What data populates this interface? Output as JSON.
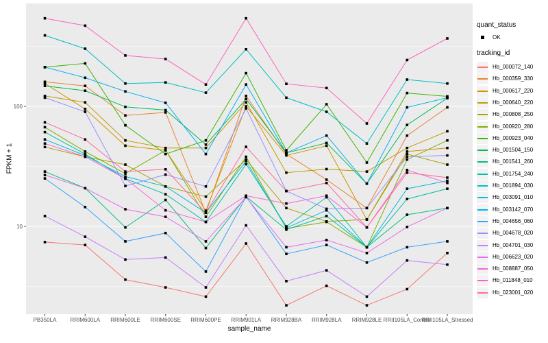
{
  "figure": {
    "y_axis_title": "FPKM + 1",
    "x_axis_title": "sample_name",
    "y_ticks": [
      {
        "label": "100",
        "value": 100
      },
      {
        "label": "10",
        "value": 10
      }
    ],
    "legend": {
      "quant_status_title": "quant_status",
      "quant_status_items": [
        {
          "label": "OK",
          "marker": "black-square"
        }
      ],
      "tracking_title": "tracking_id"
    },
    "colors": {
      "panel_background": "#EBEBEB",
      "grid": "#FFFFFF",
      "marker": "#000000",
      "tick_text": "#4D4D4D",
      "legend_key_background": "#F2F2F2"
    }
  },
  "chart_data": {
    "type": "line",
    "title": "",
    "xlabel": "sample_name",
    "ylabel": "FPKM + 1",
    "y_scale": "log10",
    "ylim": [
      2,
      720
    ],
    "grid": "on",
    "legend_position": "right",
    "major_gridlines": [
      10,
      100
    ],
    "minor_gridlines": [
      3.162,
      31.62,
      316.2
    ],
    "point_marker": "filled-black-square",
    "categories": [
      "PB350LA",
      "RRIM600LA",
      "RRIM600LE",
      "RRIM600SE",
      "RRIM600PE",
      "RRIM901LA",
      "RRIM928BA",
      "RRIM928LA",
      "RRIM928LE",
      "RRII105LA_Control",
      "RRII105LA_Stressed"
    ],
    "series": [
      {
        "name": "Hb_000072_140",
        "color": "#F8766D",
        "values": [
          7.4,
          7.0,
          3.6,
          3.1,
          2.6,
          7.2,
          2.2,
          3.2,
          2.2,
          3.0,
          6.0
        ]
      },
      {
        "name": "Hb_000359_330",
        "color": "#EA8331",
        "values": [
          160,
          148,
          84,
          89,
          13,
          122,
          40,
          24.5,
          14.2,
          57,
          98
        ]
      },
      {
        "name": "Hb_000617_220",
        "color": "#D89000",
        "values": [
          155,
          95,
          47,
          43,
          13.5,
          100,
          39,
          47,
          11.4,
          42,
          45
        ]
      },
      {
        "name": "Hb_000640_220",
        "color": "#C09B00",
        "values": [
          122,
          108,
          52,
          45,
          45,
          108,
          28,
          30,
          28.6,
          45,
          62
        ]
      },
      {
        "name": "Hb_000808_250",
        "color": "#A3A500",
        "values": [
          45.8,
          38,
          32.7,
          21.5,
          17.7,
          36,
          14.2,
          11,
          11.4,
          40,
          32.7
        ]
      },
      {
        "name": "Hb_000920_280",
        "color": "#7CAE00",
        "values": [
          67,
          42,
          27.5,
          43,
          12,
          38,
          9.6,
          10.9,
          6.7,
          36,
          52
        ]
      },
      {
        "name": "Hb_000923_040",
        "color": "#39B600",
        "values": [
          212,
          228,
          69.5,
          40,
          52,
          189,
          43,
          104,
          34,
          129,
          121
        ]
      },
      {
        "name": "Hb_001504_150",
        "color": "#00BB4E",
        "values": [
          148,
          135,
          99,
          93,
          48,
          115,
          41,
          49.5,
          22.7,
          70,
          117
        ]
      },
      {
        "name": "Hb_001541_260",
        "color": "#00BF7D",
        "values": [
          28.6,
          20.8,
          9.8,
          16.6,
          6.6,
          17.7,
          9.4,
          12.2,
          6.7,
          12.5,
          14.2
        ]
      },
      {
        "name": "Hb_001754_240",
        "color": "#00C1A3",
        "values": [
          61,
          40,
          25,
          18.5,
          10.9,
          33,
          10,
          17.5,
          6.7,
          16.9,
          20.6
        ]
      },
      {
        "name": "Hb_001894_030",
        "color": "#00BFC4",
        "values": [
          390,
          302,
          155,
          158,
          130,
          299,
          118,
          90,
          49,
          167,
          155
        ]
      },
      {
        "name": "Hb_003091_010",
        "color": "#00BBDA",
        "values": [
          53,
          39,
          26,
          21.5,
          13,
          35,
          9.7,
          13.6,
          6.7,
          20.6,
          24
        ]
      },
      {
        "name": "Hb_003142_070",
        "color": "#00B0F6",
        "values": [
          212,
          173,
          133,
          107,
          40,
          152,
          41,
          57,
          22.7,
          98,
          118
        ]
      },
      {
        "name": "Hb_004656_060",
        "color": "#35A2FF",
        "values": [
          25.1,
          14.5,
          7.5,
          8.8,
          4.2,
          17.7,
          5.9,
          7.0,
          5.0,
          6.7,
          7.5
        ]
      },
      {
        "name": "Hb_004678_020",
        "color": "#9590FF",
        "values": [
          118,
          90,
          21.7,
          27,
          21.5,
          96,
          19.7,
          14,
          14.2,
          38,
          39
        ]
      },
      {
        "name": "Hb_004701_030",
        "color": "#C77CFF",
        "values": [
          12.2,
          8.2,
          5.3,
          5.5,
          3.1,
          10.2,
          3.5,
          4.3,
          2.6,
          5.2,
          4.8
        ]
      },
      {
        "name": "Hb_006623_020",
        "color": "#E76BF3",
        "values": [
          26.8,
          20.8,
          13.9,
          12,
          7.5,
          17.5,
          6.7,
          7.7,
          6.0,
          9.9,
          14.2
        ]
      },
      {
        "name": "Hb_008887_050",
        "color": "#FA62DB",
        "values": [
          49,
          38,
          25,
          13.6,
          10.9,
          18,
          15.5,
          18,
          9.8,
          29.5,
          23
        ]
      },
      {
        "name": "Hb_011848_010",
        "color": "#FF62BC",
        "values": [
          541,
          470,
          265,
          248,
          152,
          541,
          154,
          142,
          72,
          243,
          368
        ]
      },
      {
        "name": "Hb_023001_020",
        "color": "#FF6A98",
        "values": [
          73.6,
          53,
          28.6,
          29.9,
          13,
          46,
          19.7,
          23,
          9.8,
          28,
          25.5
        ]
      }
    ]
  }
}
